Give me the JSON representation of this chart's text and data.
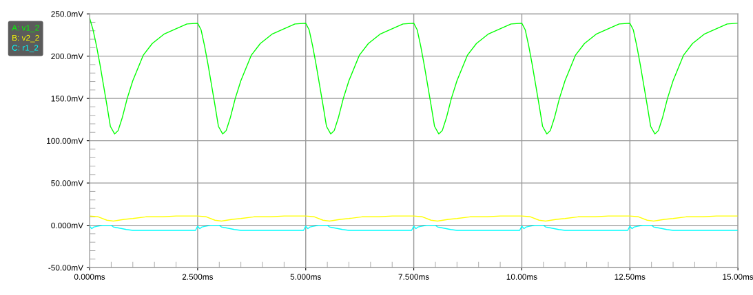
{
  "chart_data": {
    "type": "line",
    "xlim": [
      0,
      15
    ],
    "ylim": [
      -50,
      250
    ],
    "xticks": [
      {
        "value": 0,
        "label": "0.000ms"
      },
      {
        "value": 0.5,
        "label": null
      },
      {
        "value": 1,
        "label": null
      },
      {
        "value": 1.5,
        "label": null
      },
      {
        "value": 2,
        "label": null
      },
      {
        "value": 2.5,
        "label": "2.500ms"
      },
      {
        "value": 3,
        "label": null
      },
      {
        "value": 3.5,
        "label": null
      },
      {
        "value": 4,
        "label": null
      },
      {
        "value": 4.5,
        "label": null
      },
      {
        "value": 5,
        "label": "5.000ms"
      },
      {
        "value": 5.5,
        "label": null
      },
      {
        "value": 6,
        "label": null
      },
      {
        "value": 6.5,
        "label": null
      },
      {
        "value": 7,
        "label": null
      },
      {
        "value": 7.5,
        "label": "7.500ms"
      },
      {
        "value": 8,
        "label": null
      },
      {
        "value": 8.5,
        "label": null
      },
      {
        "value": 9,
        "label": null
      },
      {
        "value": 9.5,
        "label": null
      },
      {
        "value": 10,
        "label": "10.00ms"
      },
      {
        "value": 10.5,
        "label": null
      },
      {
        "value": 11,
        "label": null
      },
      {
        "value": 11.5,
        "label": null
      },
      {
        "value": 12,
        "label": null
      },
      {
        "value": 12.5,
        "label": "12.50ms"
      },
      {
        "value": 13,
        "label": null
      },
      {
        "value": 13.5,
        "label": null
      },
      {
        "value": 14,
        "label": null
      },
      {
        "value": 14.5,
        "label": null
      },
      {
        "value": 15,
        "label": "15.00ms"
      }
    ],
    "yticks": [
      {
        "value": -50,
        "label": "-50.00mV"
      },
      {
        "value": -40,
        "label": null
      },
      {
        "value": -30,
        "label": null
      },
      {
        "value": -20,
        "label": null
      },
      {
        "value": -10,
        "label": null
      },
      {
        "value": 0,
        "label": "0.000mV"
      },
      {
        "value": 10,
        "label": null
      },
      {
        "value": 20,
        "label": null
      },
      {
        "value": 30,
        "label": null
      },
      {
        "value": 40,
        "label": null
      },
      {
        "value": 50,
        "label": "50.00mV"
      },
      {
        "value": 60,
        "label": null
      },
      {
        "value": 70,
        "label": null
      },
      {
        "value": 80,
        "label": null
      },
      {
        "value": 90,
        "label": null
      },
      {
        "value": 100,
        "label": "100.00mV"
      },
      {
        "value": 110,
        "label": null
      },
      {
        "value": 120,
        "label": null
      },
      {
        "value": 130,
        "label": null
      },
      {
        "value": 140,
        "label": null
      },
      {
        "value": 150,
        "label": "150.0mV"
      },
      {
        "value": 160,
        "label": null
      },
      {
        "value": 170,
        "label": null
      },
      {
        "value": 180,
        "label": null
      },
      {
        "value": 190,
        "label": null
      },
      {
        "value": 200,
        "label": "200.0mV"
      },
      {
        "value": 210,
        "label": null
      },
      {
        "value": 220,
        "label": null
      },
      {
        "value": 230,
        "label": null
      },
      {
        "value": 240,
        "label": null
      },
      {
        "value": 250,
        "label": "250.0mV"
      }
    ],
    "grid": true,
    "legend": "top left",
    "marker": "none",
    "line_style": "solid",
    "series": [
      {
        "name": "A: v1_2",
        "color": "#00ff00",
        "x": [
          0,
          0.08,
          0.16,
          0.24,
          0.32,
          0.4,
          0.48,
          0.58,
          0.66,
          0.76,
          0.87,
          1.0,
          1.24,
          1.45,
          1.72,
          1.98,
          2.25,
          2.5,
          2.58,
          2.66,
          2.74,
          2.82,
          2.9,
          2.98,
          3.08,
          3.16,
          3.26,
          3.37,
          3.5,
          3.74,
          3.95,
          4.22,
          4.48,
          4.75,
          5,
          5.08,
          5.16,
          5.24,
          5.32,
          5.4,
          5.48,
          5.58,
          5.66,
          5.76,
          5.87,
          6.0,
          6.24,
          6.45,
          6.72,
          6.98,
          7.25,
          7.5,
          7.58,
          7.66,
          7.74,
          7.82,
          7.9,
          7.98,
          8.08,
          8.16,
          8.26,
          8.37,
          8.5,
          8.74,
          8.95,
          9.22,
          9.48,
          9.75,
          10,
          10.08,
          10.16,
          10.24,
          10.32,
          10.4,
          10.48,
          10.58,
          10.66,
          10.76,
          10.87,
          11.0,
          11.24,
          11.45,
          11.72,
          11.98,
          12.25,
          12.5,
          12.58,
          12.66,
          12.74,
          12.82,
          12.9,
          12.98,
          13.08,
          13.16,
          13.26,
          13.37,
          13.5,
          13.74,
          13.95,
          14.22,
          14.48,
          14.75,
          15
        ],
        "values": [
          245,
          231,
          212,
          190,
          166,
          142,
          117,
          108,
          112,
          128,
          150,
          171,
          201,
          215,
          226,
          232,
          238,
          239,
          231,
          212,
          190,
          166,
          142,
          117,
          108,
          112,
          128,
          150,
          171,
          201,
          215,
          226,
          232,
          238,
          239,
          231,
          212,
          190,
          166,
          142,
          117,
          108,
          112,
          128,
          150,
          171,
          201,
          215,
          226,
          232,
          238,
          239,
          231,
          212,
          190,
          166,
          142,
          117,
          108,
          112,
          128,
          150,
          171,
          201,
          215,
          226,
          232,
          238,
          239,
          231,
          212,
          190,
          166,
          142,
          117,
          108,
          112,
          128,
          150,
          171,
          201,
          215,
          226,
          232,
          238,
          239,
          231,
          212,
          190,
          166,
          142,
          117,
          108,
          112,
          128,
          150,
          171,
          201,
          215,
          226,
          232,
          238,
          239
        ]
      },
      {
        "name": "B: v2_2",
        "color": "#ffff00",
        "x": [
          0,
          0.2,
          0.4,
          0.55,
          0.8,
          1.0,
          1.3,
          1.7,
          2.0,
          2.3,
          2.5,
          2.7,
          2.9,
          3.05,
          3.3,
          3.5,
          3.8,
          4.2,
          4.5,
          4.8,
          5,
          5.2,
          5.4,
          5.55,
          5.8,
          6.0,
          6.3,
          6.7,
          7.0,
          7.3,
          7.5,
          7.7,
          7.9,
          8.05,
          8.3,
          8.5,
          8.8,
          9.2,
          9.5,
          9.8,
          10,
          10.2,
          10.4,
          10.55,
          10.8,
          11.0,
          11.3,
          11.7,
          12.0,
          12.3,
          12.5,
          12.7,
          12.9,
          13.05,
          13.3,
          13.5,
          13.8,
          14.2,
          14.5,
          14.8,
          15
        ],
        "values": [
          11,
          10,
          6,
          5,
          7,
          8,
          10,
          10,
          11,
          11,
          11,
          10,
          6,
          5,
          7,
          8,
          10,
          10,
          11,
          11,
          11,
          10,
          6,
          5,
          7,
          8,
          10,
          10,
          11,
          11,
          11,
          10,
          6,
          5,
          7,
          8,
          10,
          10,
          11,
          11,
          11,
          10,
          6,
          5,
          7,
          8,
          10,
          10,
          11,
          11,
          11,
          10,
          6,
          5,
          7,
          8,
          10,
          10,
          11,
          11,
          11
        ]
      },
      {
        "name": "C: r1_2",
        "color": "#00ffff",
        "x": [
          0,
          0.05,
          0.1,
          0.2,
          0.3,
          0.5,
          0.55,
          0.65,
          0.75,
          0.85,
          1.0,
          2.45,
          2.5,
          2.55,
          2.6,
          2.7,
          2.8,
          3.0,
          3.05,
          3.15,
          3.25,
          3.35,
          3.5,
          4.95,
          5,
          5.05,
          5.1,
          5.2,
          5.3,
          5.5,
          5.55,
          5.65,
          5.75,
          5.85,
          6.0,
          7.45,
          7.5,
          7.55,
          7.6,
          7.7,
          7.8,
          8.0,
          8.05,
          8.15,
          8.25,
          8.35,
          8.5,
          9.95,
          10,
          10.05,
          10.1,
          10.2,
          10.3,
          10.5,
          10.55,
          10.65,
          10.75,
          10.85,
          11.0,
          12.45,
          12.5,
          12.55,
          12.6,
          12.7,
          12.8,
          13.0,
          13.05,
          13.15,
          13.25,
          13.35,
          13.5,
          14.95,
          15
        ],
        "values": [
          -1,
          -4,
          -2,
          -1,
          0,
          0,
          -2,
          -3,
          -4,
          -5,
          -6,
          -6,
          -1,
          -4,
          -2,
          -1,
          0,
          0,
          -2,
          -3,
          -4,
          -5,
          -6,
          -6,
          -1,
          -4,
          -2,
          -1,
          0,
          0,
          -2,
          -3,
          -4,
          -5,
          -6,
          -6,
          -1,
          -4,
          -2,
          -1,
          0,
          0,
          -2,
          -3,
          -4,
          -5,
          -6,
          -6,
          -1,
          -4,
          -2,
          -1,
          0,
          0,
          -2,
          -3,
          -4,
          -5,
          -6,
          -6,
          -1,
          -4,
          -2,
          -1,
          0,
          0,
          -2,
          -3,
          -4,
          -5,
          -6,
          -6,
          -6
        ]
      }
    ]
  }
}
